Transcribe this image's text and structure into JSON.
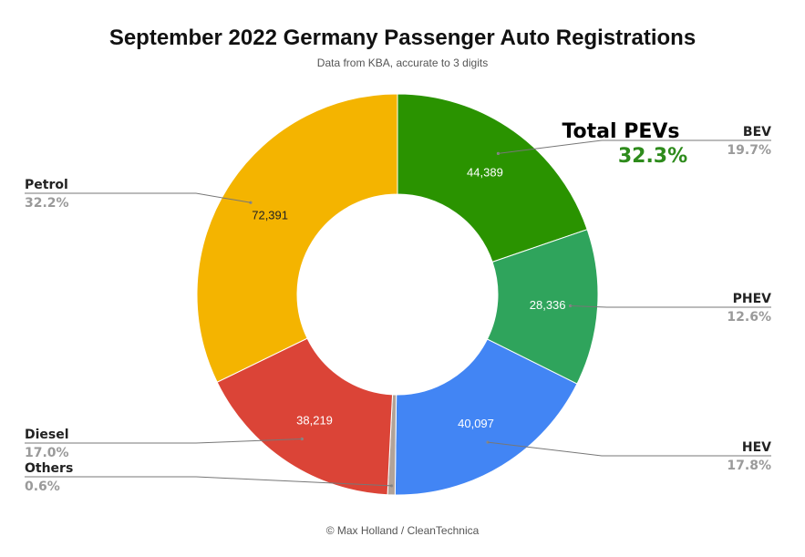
{
  "chart_data": {
    "type": "pie",
    "title": "September 2022 Germany Passenger Auto Registrations",
    "subtitle": "Data from KBA, accurate to 3 digits",
    "donut": true,
    "slices": [
      {
        "name": "BEV",
        "value": 44389,
        "label": "44,389",
        "percent": "19.7%",
        "color": "#2a9300"
      },
      {
        "name": "PHEV",
        "value": 28336,
        "label": "28,336",
        "percent": "12.6%",
        "color": "#2fa45c"
      },
      {
        "name": "HEV",
        "value": 40097,
        "label": "40,097",
        "percent": "17.8%",
        "color": "#4285f4"
      },
      {
        "name": "Others",
        "value": 1350,
        "label": "",
        "percent": "0.6%",
        "color": "#b2a398"
      },
      {
        "name": "Diesel",
        "value": 38219,
        "label": "38,219",
        "percent": "17.0%",
        "color": "#db4437"
      },
      {
        "name": "Petrol",
        "value": 72391,
        "label": "72,391",
        "percent": "32.2%",
        "color": "#f4b400"
      }
    ],
    "annotation": {
      "title": "Total PEVs",
      "value": "32.3%"
    }
  },
  "credit": "© Max Holland / CleanTechnica"
}
